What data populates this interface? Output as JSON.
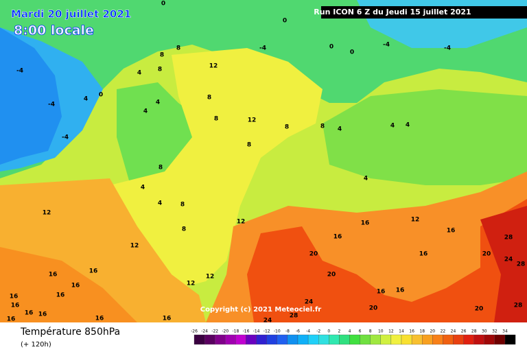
{
  "header": {
    "date": "Mardi 20 juillet 2021",
    "time": "8:00 locale",
    "run": "Run ICON 6 Z du Jeudi 15 juillet 2021"
  },
  "copyright": "Copyright (c) 2021 Meteociel.fr",
  "legend": {
    "title": "Température 850hPa",
    "subtitle": "(+ 120h)",
    "ticks": [
      -26,
      -24,
      -22,
      -20,
      -18,
      -16,
      -14,
      -12,
      -10,
      -8,
      -6,
      -4,
      -2,
      0,
      2,
      4,
      6,
      8,
      10,
      12,
      14,
      16,
      18,
      20,
      22,
      24,
      26,
      28,
      30,
      32,
      34
    ],
    "colors": [
      "#3a0040",
      "#5a0060",
      "#80008a",
      "#a000b0",
      "#c000d0",
      "#6a00c0",
      "#3020d0",
      "#2040e0",
      "#2060f0",
      "#1090f0",
      "#10b0f8",
      "#20d0f8",
      "#30e0e0",
      "#30e8b0",
      "#30e080",
      "#40e040",
      "#70e040",
      "#a0e840",
      "#d0f040",
      "#f0f040",
      "#f8e030",
      "#f8c030",
      "#f8a020",
      "#f88018",
      "#f06010",
      "#e84010",
      "#e02010",
      "#c01010",
      "#a00808",
      "#700000",
      "#000000"
    ]
  },
  "map": {
    "contour_labels": [
      "0",
      "0",
      "0",
      "0",
      "-4",
      "-4",
      "-4",
      "-4",
      "-4",
      "-4",
      "0",
      "4",
      "4",
      "4",
      "4",
      "8",
      "8",
      "8",
      "12",
      "8",
      "8",
      "12",
      "8",
      "8",
      "8",
      "4",
      "4",
      "4",
      "4",
      "8",
      "4",
      "4",
      "8",
      "12",
      "8",
      "12",
      "12",
      "16",
      "12",
      "16",
      "20",
      "16",
      "16",
      "20",
      "28",
      "24",
      "28",
      "20",
      "12",
      "12",
      "16",
      "16",
      "20",
      "24",
      "24",
      "28",
      "20",
      "28",
      "16",
      "16",
      "16",
      "16",
      "16",
      "16",
      "16",
      "16",
      "16",
      "16",
      "16"
    ]
  }
}
